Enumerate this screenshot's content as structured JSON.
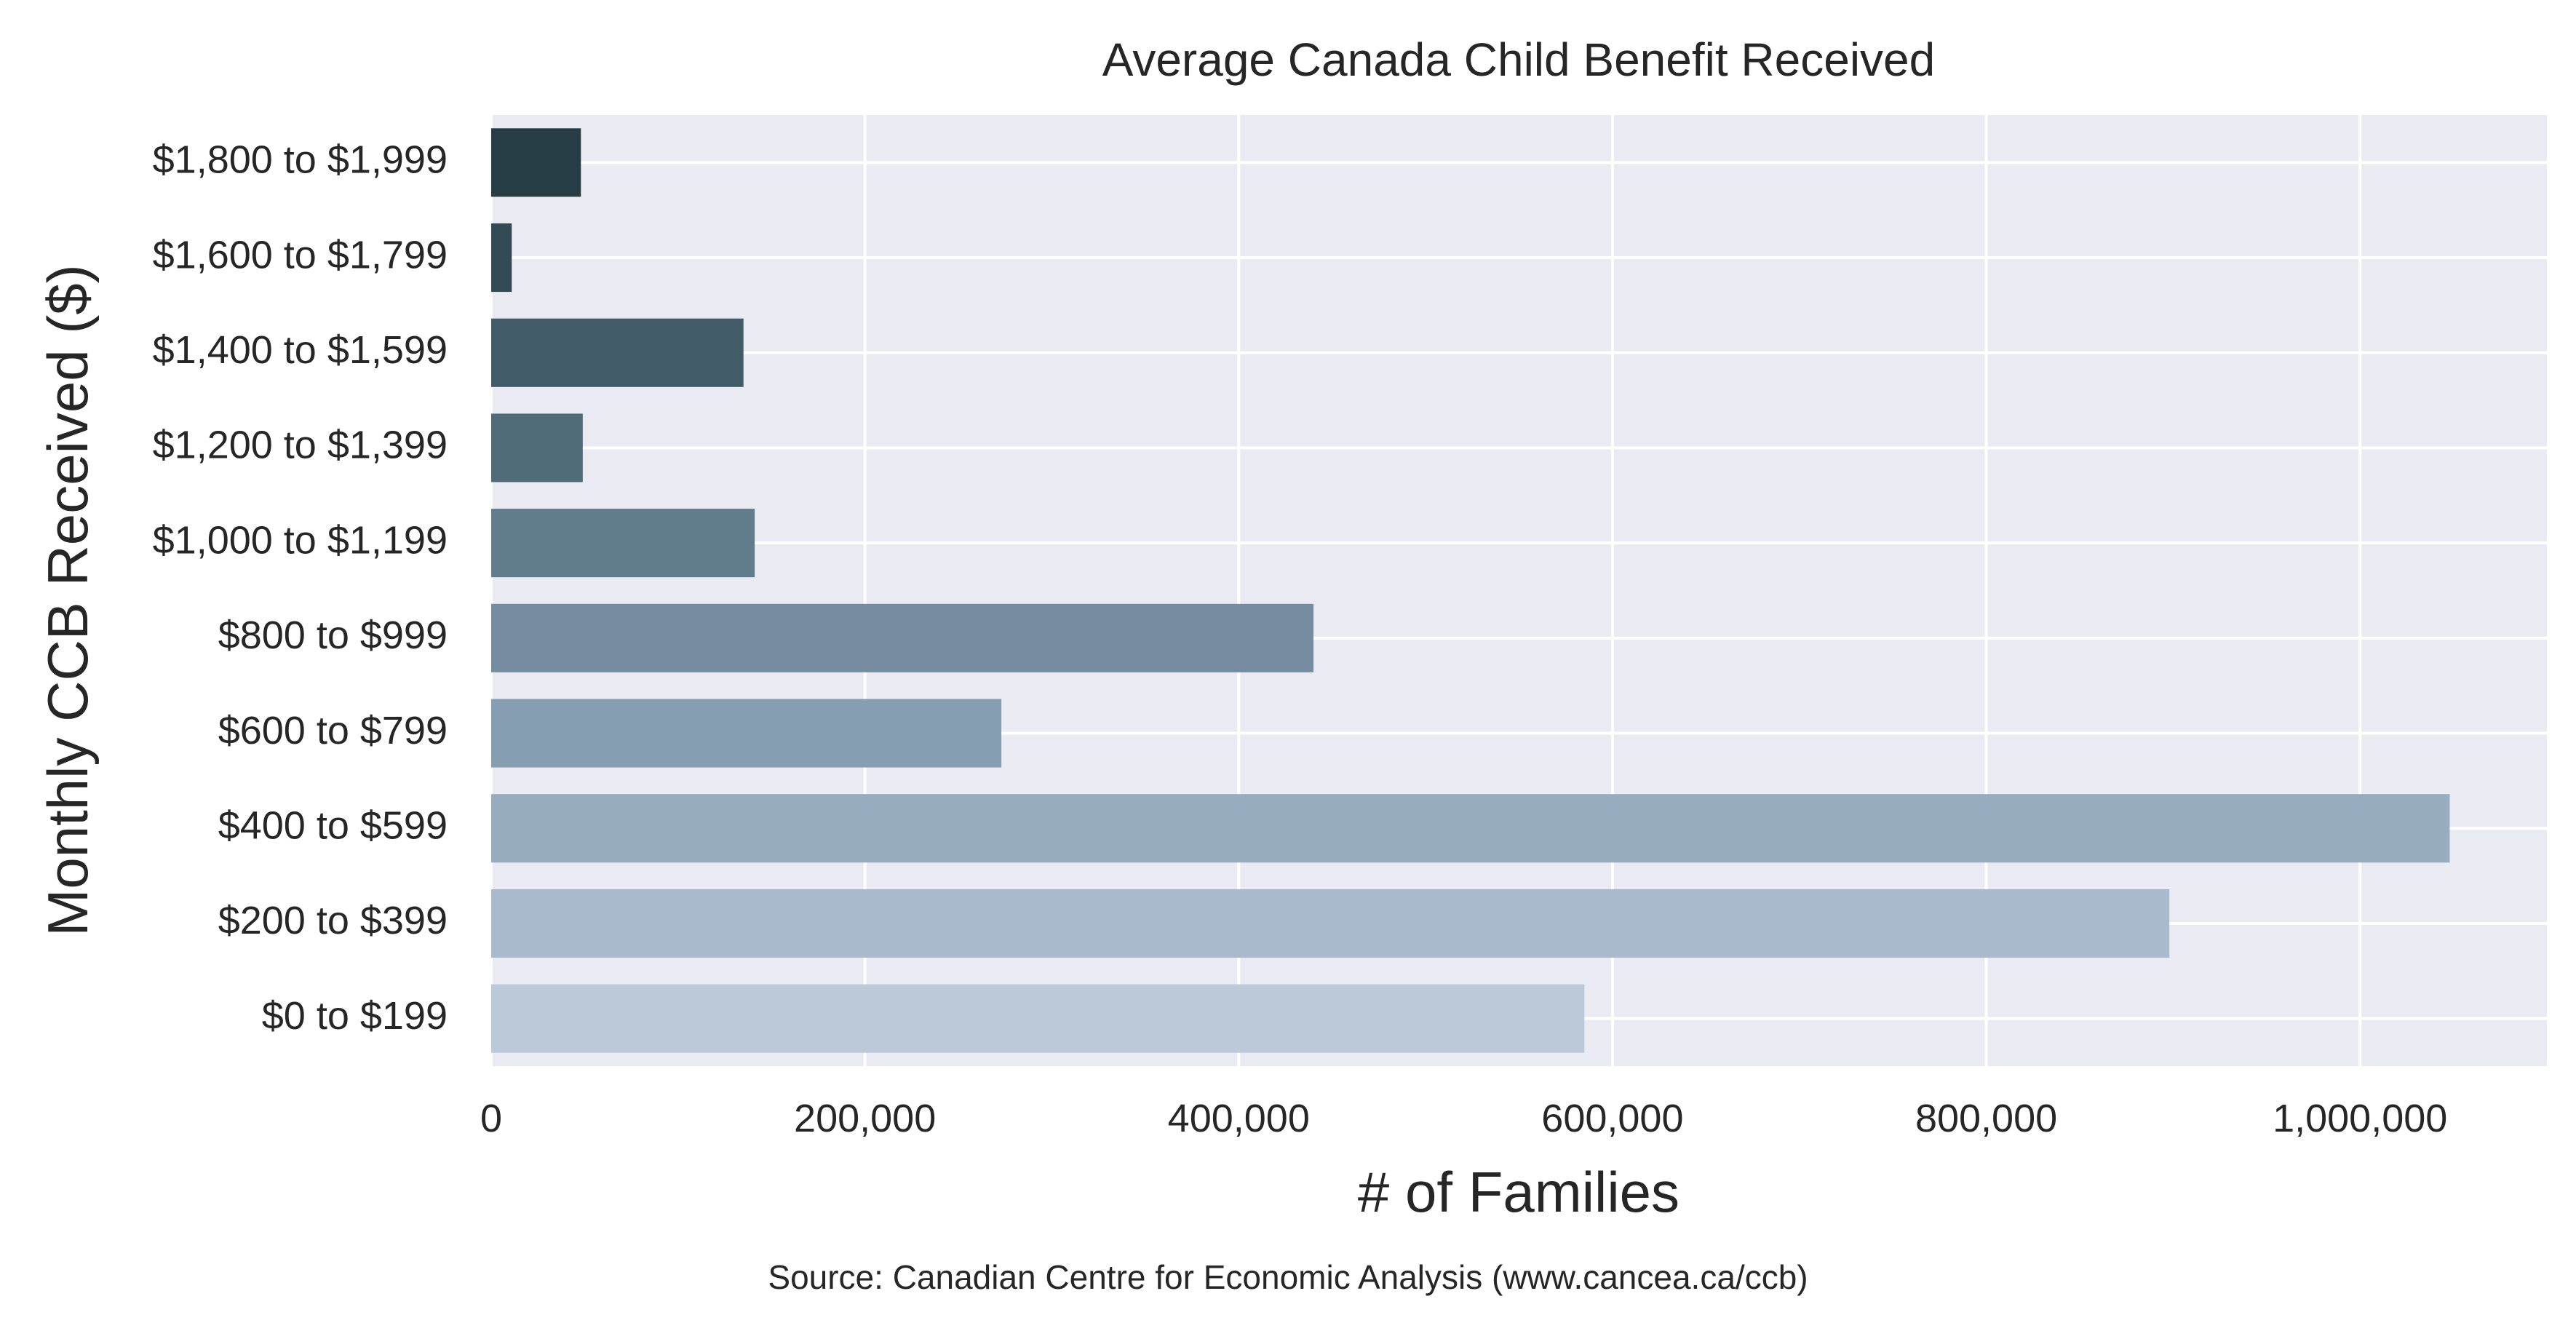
{
  "source_note": "Source: Canadian Centre for Economic Analysis (www.cancea.ca/ccb)",
  "chart_data": {
    "type": "bar",
    "orientation": "horizontal",
    "title": "Average Canada Child Benefit Received",
    "xlabel": "# of Families",
    "ylabel": "Monthly CCB Received ($)",
    "categories": [
      "$1,800 to $1,999",
      "$1,600 to $1,799",
      "$1,400 to $1,599",
      "$1,200 to $1,399",
      "$1,000 to $1,199",
      "$800 to $999",
      "$600 to $799",
      "$400 to $599",
      "$200 to $399",
      "$0 to $199"
    ],
    "values": [
      48000,
      11000,
      135000,
      49000,
      141000,
      440000,
      273000,
      1048000,
      898000,
      585000
    ],
    "colors": [
      "#263d46",
      "#334b55",
      "#425b69",
      "#4f6b78",
      "#617c8c",
      "#768ca0",
      "#869eb1",
      "#97acbf",
      "#a8bacc",
      "#bbc9d9"
    ],
    "xlim": [
      0,
      1100000
    ],
    "xticks": [
      0,
      200000,
      400000,
      600000,
      800000,
      1000000
    ],
    "xtick_labels": [
      "0",
      "200,000",
      "400,000",
      "600,000",
      "800,000",
      "1,000,000"
    ],
    "grid": true,
    "plot_background": "#eaeaf2",
    "grid_color": "#ffffff"
  }
}
